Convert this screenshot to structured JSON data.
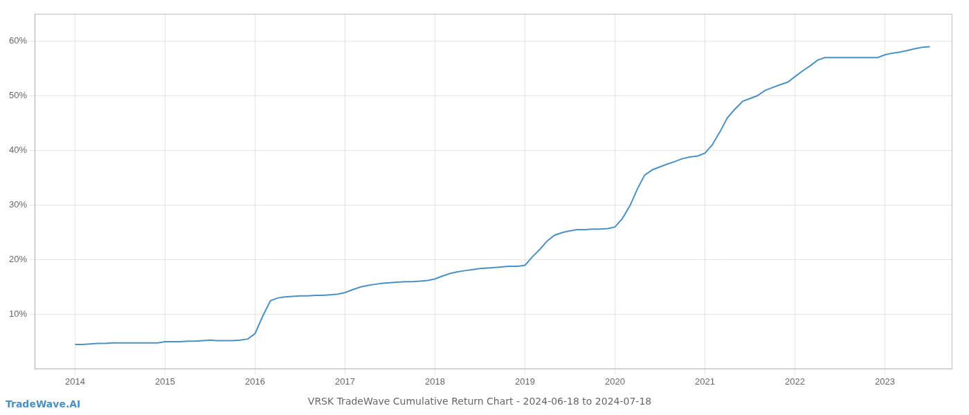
{
  "chart_data": {
    "type": "line",
    "title": "VRSK TradeWave Cumulative Return Chart - 2024-06-18 to 2024-07-18",
    "annotations": [
      "TradeWave.AI"
    ],
    "color": "#4a90c4",
    "x": [
      2014.0,
      2014.08,
      2014.17,
      2014.25,
      2014.33,
      2014.42,
      2014.5,
      2014.58,
      2014.67,
      2014.75,
      2014.83,
      2014.92,
      2015.0,
      2015.08,
      2015.17,
      2015.25,
      2015.33,
      2015.42,
      2015.5,
      2015.58,
      2015.67,
      2015.75,
      2015.83,
      2015.92,
      2016.0,
      2016.08,
      2016.17,
      2016.25,
      2016.33,
      2016.42,
      2016.5,
      2016.58,
      2016.67,
      2016.75,
      2016.83,
      2016.92,
      2017.0,
      2017.08,
      2017.17,
      2017.25,
      2017.33,
      2017.42,
      2017.5,
      2017.58,
      2017.67,
      2017.75,
      2017.83,
      2017.92,
      2018.0,
      2018.08,
      2018.17,
      2018.25,
      2018.33,
      2018.42,
      2018.5,
      2018.58,
      2018.67,
      2018.75,
      2018.83,
      2018.92,
      2019.0,
      2019.08,
      2019.17,
      2019.25,
      2019.33,
      2019.42,
      2019.5,
      2019.58,
      2019.67,
      2019.75,
      2019.83,
      2019.92,
      2020.0,
      2020.08,
      2020.17,
      2020.25,
      2020.33,
      2020.42,
      2020.5,
      2020.58,
      2020.67,
      2020.75,
      2020.83,
      2020.92,
      2021.0,
      2021.08,
      2021.17,
      2021.25,
      2021.33,
      2021.42,
      2021.5,
      2021.58,
      2021.67,
      2021.75,
      2021.83,
      2021.92,
      2022.0,
      2022.08,
      2022.17,
      2022.25,
      2022.33,
      2022.42,
      2022.5,
      2022.58,
      2022.67,
      2022.75,
      2022.83,
      2022.92,
      2023.0,
      2023.08,
      2023.17,
      2023.25,
      2023.33,
      2023.42,
      2023.5
    ],
    "values": [
      4.5,
      4.5,
      4.6,
      4.7,
      4.7,
      4.8,
      4.8,
      4.8,
      4.8,
      4.8,
      4.8,
      4.8,
      5.0,
      5.0,
      5.0,
      5.1,
      5.1,
      5.2,
      5.3,
      5.2,
      5.2,
      5.2,
      5.3,
      5.5,
      6.5,
      9.5,
      12.5,
      13.0,
      13.2,
      13.3,
      13.4,
      13.4,
      13.5,
      13.5,
      13.6,
      13.7,
      14.0,
      14.5,
      15.0,
      15.3,
      15.5,
      15.7,
      15.8,
      15.9,
      16.0,
      16.0,
      16.1,
      16.2,
      16.5,
      17.0,
      17.5,
      17.8,
      18.0,
      18.2,
      18.4,
      18.5,
      18.6,
      18.7,
      18.8,
      18.8,
      19.0,
      20.5,
      22.0,
      23.5,
      24.5,
      25.0,
      25.3,
      25.5,
      25.5,
      25.6,
      25.6,
      25.7,
      26.0,
      27.5,
      30.0,
      33.0,
      35.5,
      36.5,
      37.0,
      37.5,
      38.0,
      38.5,
      38.8,
      39.0,
      39.5,
      41.0,
      43.5,
      46.0,
      47.5,
      49.0,
      49.5,
      50.0,
      51.0,
      51.5,
      52.0,
      52.5,
      53.5,
      54.5,
      55.5,
      56.5,
      57.0,
      57.0,
      57.0,
      57.0,
      57.0,
      57.0,
      57.0,
      57.0,
      57.5,
      57.8,
      58.0,
      58.3,
      58.6,
      58.9,
      59.0
    ],
    "xlim": [
      2013.55,
      2023.75
    ],
    "xticks": [
      2014,
      2015,
      2016,
      2017,
      2018,
      2019,
      2020,
      2021,
      2022,
      2023
    ],
    "ylim": [
      0,
      65
    ],
    "yticks": [
      {
        "value": 10,
        "label": "10%"
      },
      {
        "value": 20,
        "label": "20%"
      },
      {
        "value": 30,
        "label": "30%"
      },
      {
        "value": 40,
        "label": "40%"
      },
      {
        "value": 50,
        "label": "50%"
      },
      {
        "value": 60,
        "label": "60%"
      }
    ],
    "grid": true
  }
}
